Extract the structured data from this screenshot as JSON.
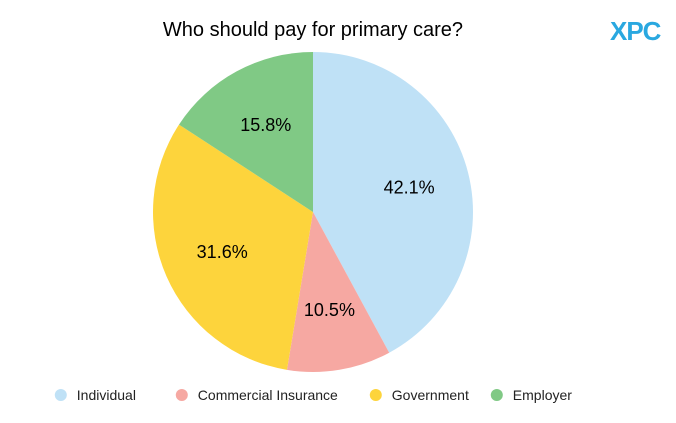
{
  "logo": {
    "text": "XPC",
    "color": "#2aa8e0"
  },
  "chart_data": {
    "type": "pie",
    "title": "Who should pay for primary care?",
    "categories": [
      "Individual",
      "Commercial Insurance",
      "Government",
      "Employer"
    ],
    "values": [
      42.1,
      10.5,
      31.6,
      15.8
    ],
    "data_labels": [
      "42.1%",
      "10.5%",
      "31.6%",
      "15.8%"
    ],
    "colors": [
      "#bfe1f6",
      "#f6a8a2",
      "#fdd43c",
      "#80c985"
    ],
    "start_angle_deg": 0,
    "direction": "clockwise",
    "legend": {
      "position": "bottom",
      "entries": [
        "Individual",
        "Commercial Insurance",
        "Government",
        "Employer"
      ]
    }
  }
}
